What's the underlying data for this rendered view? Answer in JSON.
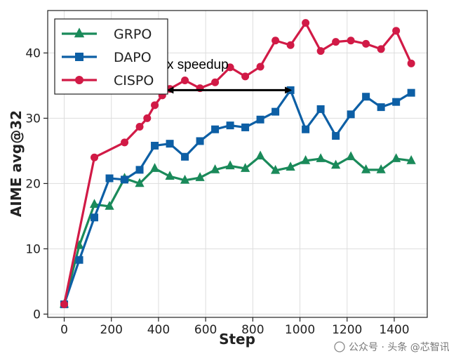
{
  "chart_data": {
    "type": "line",
    "title": "",
    "xlabel": "Step",
    "ylabel": "AIME avg@32",
    "xlim": [
      -70,
      1540
    ],
    "ylim": [
      -0.5,
      46.5
    ],
    "xticks": [
      0,
      200,
      400,
      600,
      800,
      1000,
      1200,
      1400
    ],
    "yticks": [
      0,
      10,
      20,
      30,
      40
    ],
    "grid": true,
    "legend_position": "top-left",
    "series": [
      {
        "name": "GRPO",
        "color": "#1a8a5a",
        "marker": "triangle",
        "x": [
          0,
          64,
          128,
          192,
          256,
          320,
          384,
          448,
          512,
          576,
          640,
          704,
          768,
          832,
          896,
          960,
          1024,
          1088,
          1152,
          1216,
          1280,
          1344,
          1408,
          1472
        ],
        "y": [
          1.5,
          10.5,
          16.8,
          16.5,
          20.8,
          20.0,
          22.3,
          21.1,
          20.5,
          20.9,
          22.1,
          22.7,
          22.3,
          24.2,
          22.0,
          22.5,
          23.5,
          23.8,
          22.8,
          24.1,
          22.1,
          22.1,
          23.8,
          23.5
        ]
      },
      {
        "name": "DAPO",
        "color": "#0d5fa5",
        "marker": "square",
        "x": [
          0,
          64,
          128,
          192,
          256,
          320,
          384,
          448,
          512,
          576,
          640,
          704,
          768,
          832,
          896,
          960,
          1024,
          1088,
          1152,
          1216,
          1280,
          1344,
          1408,
          1472
        ],
        "y": [
          1.5,
          8.3,
          14.8,
          20.8,
          20.6,
          22.1,
          25.8,
          26.1,
          24.1,
          26.5,
          28.3,
          28.9,
          28.6,
          29.8,
          31.0,
          34.3,
          28.3,
          31.4,
          27.3,
          30.6,
          33.3,
          31.7,
          32.5,
          33.9
        ]
      },
      {
        "name": "CISPO",
        "color": "#d11a46",
        "marker": "circle",
        "x": [
          0,
          128,
          256,
          320,
          352,
          384,
          416,
          448,
          512,
          576,
          640,
          704,
          768,
          832,
          896,
          960,
          1024,
          1088,
          1152,
          1216,
          1280,
          1344,
          1408,
          1472
        ],
        "y": [
          1.5,
          24.0,
          26.3,
          28.7,
          30.0,
          32.0,
          33.5,
          34.5,
          35.8,
          34.6,
          35.5,
          37.8,
          36.4,
          37.9,
          41.9,
          41.2,
          44.6,
          40.3,
          41.7,
          41.9,
          41.4,
          40.6,
          43.4,
          38.4
        ]
      }
    ],
    "annotations": [
      {
        "text": "2x speedup",
        "arrow_from": [
          440,
          34.3
        ],
        "arrow_to": [
          960,
          34.3
        ],
        "text_anchor": [
          464,
          38.2
        ]
      }
    ]
  },
  "watermark": {
    "text": "公众号 · 头条 @芯智讯"
  }
}
